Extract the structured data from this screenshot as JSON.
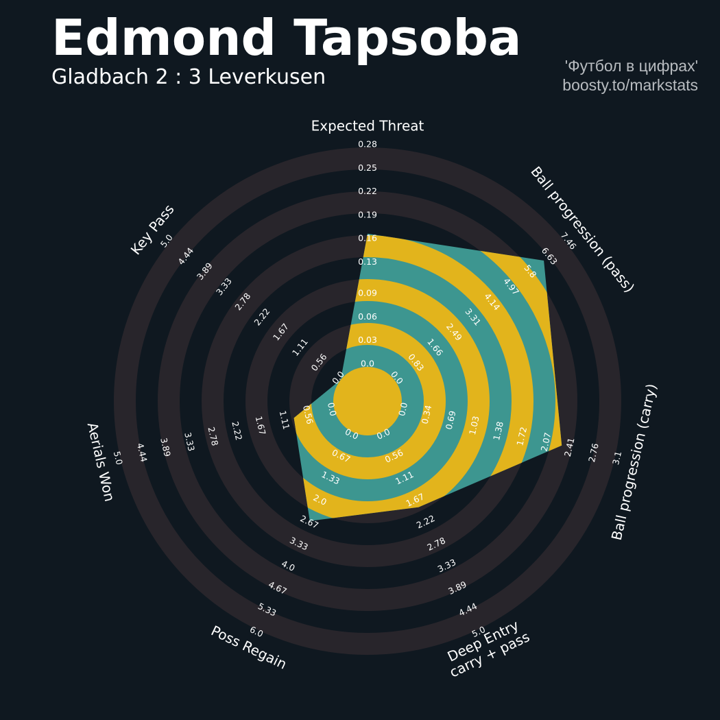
{
  "title": "Edmond Tapsoba",
  "subtitle": "Gladbach 2 : 3 Leverkusen",
  "credits": [
    "'Футбол в цифрах'",
    "boosty.to/markstats"
  ],
  "chart_data": {
    "type": "radar",
    "color": "#3d9690",
    "highlight_color": "#e2b41c",
    "ring_color": "#28252b",
    "categories": [
      "Expected Threat",
      "Ball progression (pass)",
      "Ball progression (carry)",
      "Deep Entry\ncarry + pass",
      "Poss Regain",
      "Aerials Won",
      "Key Pass"
    ],
    "values": [
      0.17,
      6.5,
      2.33,
      1.9,
      2.7,
      0.94,
      0
    ],
    "axes": [
      {
        "ylim": [
          0,
          0.28
        ],
        "yticks": [
          {
            "value": 0,
            "label": "0.0"
          },
          0.03,
          0.06,
          0.09,
          0.13,
          0.16,
          0.19,
          0.22,
          0.25,
          0.28
        ]
      },
      {
        "ylim": [
          0,
          7.46
        ],
        "yticks": [
          {
            "value": 0,
            "label": "0.0"
          },
          0.83,
          1.66,
          2.49,
          3.31,
          4.14,
          4.97,
          5.8,
          6.63,
          7.46
        ]
      },
      {
        "ylim": [
          0,
          3.1
        ],
        "yticks": [
          {
            "value": 0,
            "label": "0.0"
          },
          0.34,
          0.69,
          1.03,
          1.38,
          1.72,
          2.07,
          2.41,
          2.76,
          3.1
        ]
      },
      {
        "ylim": [
          0,
          5
        ],
        "yticks": [
          {
            "value": 0,
            "label": "0.0"
          },
          0.56,
          1.11,
          1.67,
          2.22,
          2.78,
          3.33,
          3.89,
          4.44,
          {
            "value": 5,
            "label": "5.0"
          }
        ]
      },
      {
        "ylim": [
          0,
          6
        ],
        "yticks": [
          {
            "value": 0,
            "label": "0.0"
          },
          0.67,
          1.33,
          {
            "value": 2,
            "label": "2.0"
          },
          2.67,
          3.33,
          {
            "value": 4,
            "label": "4.0"
          },
          4.67,
          5.33,
          {
            "value": 6,
            "label": "6.0"
          }
        ]
      },
      {
        "ylim": [
          0,
          5
        ],
        "yticks": [
          {
            "value": 0,
            "label": "0.0"
          },
          0.56,
          1.11,
          1.67,
          2.22,
          2.78,
          3.33,
          3.89,
          4.44,
          {
            "value": 5,
            "label": "5.0"
          }
        ]
      },
      {
        "ylim": [
          0,
          5
        ],
        "yticks": [
          {
            "value": 0,
            "label": "0.0"
          },
          0.56,
          1.11,
          1.67,
          2.22,
          2.78,
          3.33,
          3.89,
          4.44,
          {
            "value": 5,
            "label": "5.0"
          }
        ]
      }
    ]
  }
}
